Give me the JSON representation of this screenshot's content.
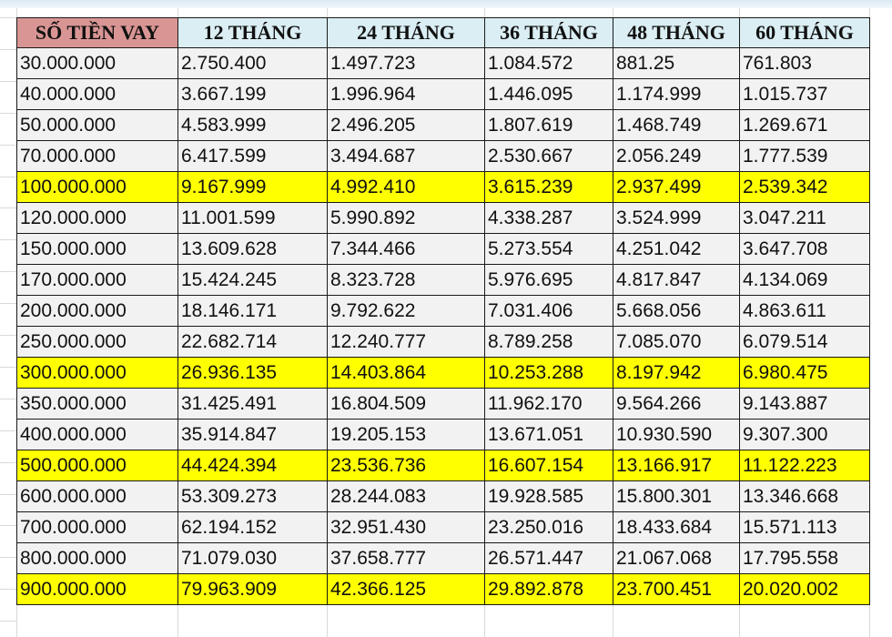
{
  "colors": {
    "header_first": "#d99594",
    "header": "#daeef3",
    "highlight": "#ffff00",
    "cell": "#f2f2f2"
  },
  "headers": [
    "SỐ TIỀN VAY",
    "12 THÁNG",
    "24 THÁNG",
    "36 THÁNG",
    "48 THÁNG",
    "60 THÁNG"
  ],
  "rows": [
    {
      "highlight": false,
      "cells": [
        "30.000.000",
        "2.750.400",
        "1.497.723",
        "1.084.572",
        "881.25",
        "761.803"
      ]
    },
    {
      "highlight": false,
      "cells": [
        "40.000.000",
        "3.667.199",
        "1.996.964",
        "1.446.095",
        "1.174.999",
        "1.015.737"
      ]
    },
    {
      "highlight": false,
      "cells": [
        "50.000.000",
        "4.583.999",
        "2.496.205",
        "1.807.619",
        "1.468.749",
        "1.269.671"
      ]
    },
    {
      "highlight": false,
      "cells": [
        "70.000.000",
        "6.417.599",
        "3.494.687",
        "2.530.667",
        "2.056.249",
        "1.777.539"
      ]
    },
    {
      "highlight": true,
      "cells": [
        "100.000.000",
        "9.167.999",
        "4.992.410",
        "3.615.239",
        "2.937.499",
        "2.539.342"
      ]
    },
    {
      "highlight": false,
      "cells": [
        "120.000.000",
        "11.001.599",
        "5.990.892",
        "4.338.287",
        "3.524.999",
        "3.047.211"
      ]
    },
    {
      "highlight": false,
      "cells": [
        "150.000.000",
        "13.609.628",
        "7.344.466",
        "5.273.554",
        "4.251.042",
        "3.647.708"
      ]
    },
    {
      "highlight": false,
      "cells": [
        "170.000.000",
        "15.424.245",
        "8.323.728",
        "5.976.695",
        "4.817.847",
        "4.134.069"
      ]
    },
    {
      "highlight": false,
      "cells": [
        "200.000.000",
        "18.146.171",
        "9.792.622",
        "7.031.406",
        "5.668.056",
        "4.863.611"
      ]
    },
    {
      "highlight": false,
      "cells": [
        "250.000.000",
        "22.682.714",
        "12.240.777",
        "8.789.258",
        "7.085.070",
        "6.079.514"
      ]
    },
    {
      "highlight": true,
      "cells": [
        "300.000.000",
        "26.936.135",
        "14.403.864",
        "10.253.288",
        "8.197.942",
        "6.980.475"
      ]
    },
    {
      "highlight": false,
      "cells": [
        "350.000.000",
        "31.425.491",
        "16.804.509",
        "11.962.170",
        "9.564.266",
        "9.143.887"
      ]
    },
    {
      "highlight": false,
      "cells": [
        "400.000.000",
        "35.914.847",
        "19.205.153",
        "13.671.051",
        "10.930.590",
        "9.307.300"
      ]
    },
    {
      "highlight": true,
      "cells": [
        "500.000.000",
        "44.424.394",
        "23.536.736",
        "16.607.154",
        "13.166.917",
        "11.122.223"
      ]
    },
    {
      "highlight": false,
      "cells": [
        "600.000.000",
        "53.309.273",
        "28.244.083",
        "19.928.585",
        "15.800.301",
        "13.346.668"
      ]
    },
    {
      "highlight": false,
      "cells": [
        "700.000.000",
        "62.194.152",
        "32.951.430",
        "23.250.016",
        "18.433.684",
        "15.571.113"
      ]
    },
    {
      "highlight": false,
      "cells": [
        "800.000.000",
        "71.079.030",
        "37.658.777",
        "26.571.447",
        "21.067.068",
        "17.795.558"
      ]
    },
    {
      "highlight": true,
      "cells": [
        "900.000.000",
        "79.963.909",
        "42.366.125",
        "29.892.878",
        "23.700.451",
        "20.020.002"
      ]
    }
  ]
}
